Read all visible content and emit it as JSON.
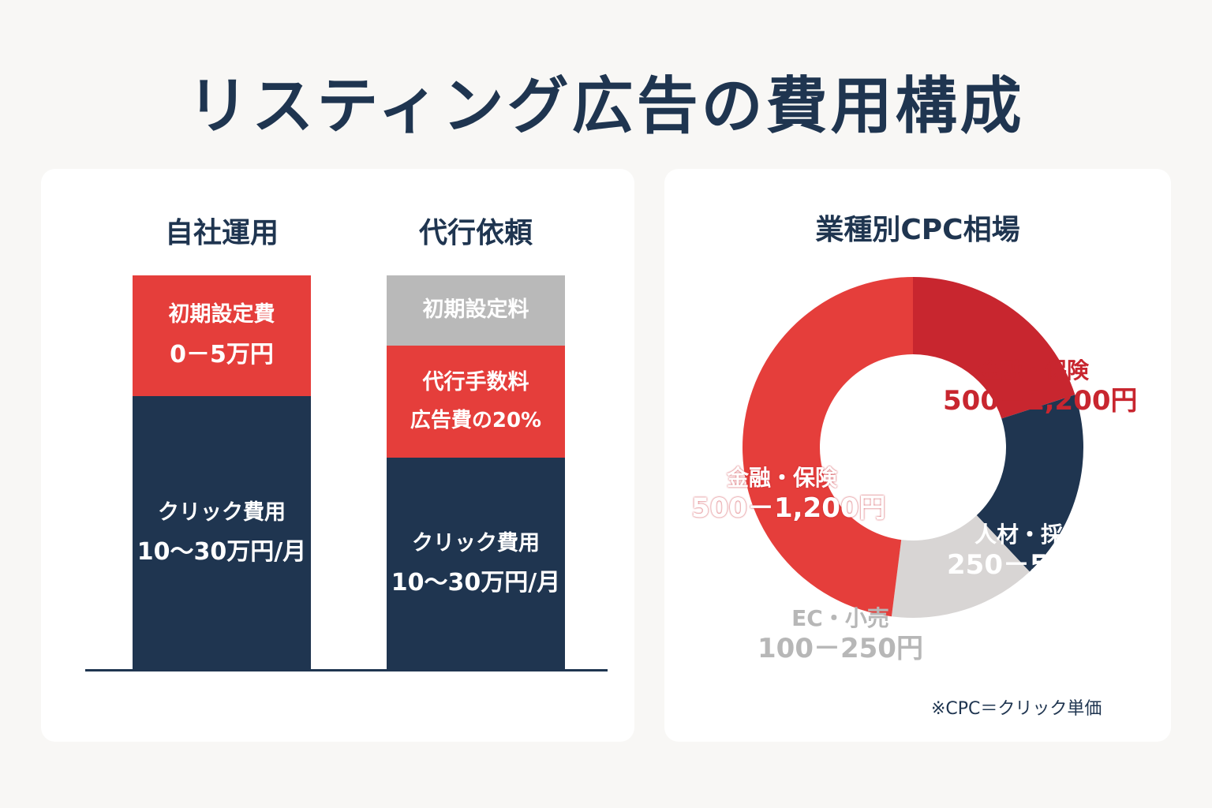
{
  "title": "リスティング広告の費用構成",
  "left_panel": {
    "columns": [
      {
        "title": "自社運用",
        "segments": [
          {
            "label": "初期設定費",
            "value": "0－5万円",
            "color": "#e53e3b"
          },
          {
            "label": "クリック費用",
            "value": "10～30万円/月",
            "color": "#1f3550"
          }
        ]
      },
      {
        "title": "代行依頼",
        "segments": [
          {
            "label": "初期設定料",
            "value": "",
            "color": "#b9b9b9"
          },
          {
            "label": "代行手数料",
            "value": "広告費の20%",
            "color": "#e53e3b"
          },
          {
            "label": "クリック費用",
            "value": "10～30万円/月",
            "color": "#1f3550"
          }
        ]
      }
    ]
  },
  "right_panel": {
    "title": "業種別CPC相場",
    "note": "※CPC＝クリック単価"
  },
  "chart_data": [
    {
      "type": "bar",
      "stacked": true,
      "categories": [
        "自社運用",
        "代行依頼"
      ],
      "series": [
        {
          "name": "初期設定費",
          "values": [
            "0－5万円",
            null
          ]
        },
        {
          "name": "初期設定料",
          "values": [
            null,
            ""
          ]
        },
        {
          "name": "代行手数料",
          "values": [
            null,
            "広告費の20%"
          ]
        },
        {
          "name": "クリック費用",
          "values": [
            "10～30万円/月",
            "10～30万円/月"
          ]
        }
      ]
    },
    {
      "type": "pie",
      "title": "業種別CPC相場",
      "donut": true,
      "slices": [
        {
          "label": "金融・保険",
          "value": "500－1,200円",
          "share": 0.2,
          "color": "#c8262f"
        },
        {
          "label": "人材・採用",
          "value": "250－500円",
          "share": 0.18,
          "color": "#1f3550"
        },
        {
          "label": "EC・小売",
          "value": "100－250円",
          "share": 0.14,
          "color": "#d8d5d4"
        },
        {
          "label": "金融・保険",
          "value": "500－1,200円",
          "share": 0.48,
          "color": "#e53e3b"
        }
      ]
    }
  ]
}
